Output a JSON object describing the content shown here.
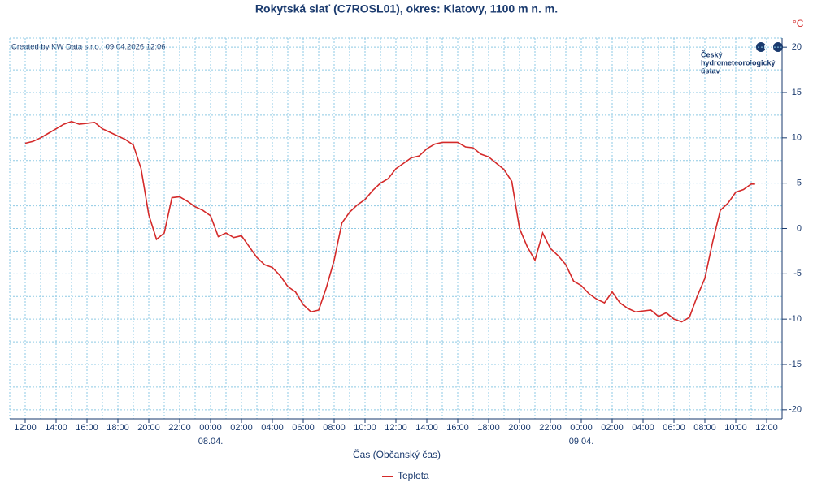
{
  "chart_data": {
    "type": "line",
    "title": "Rokytská slať (C7ROSL01), okres: Klatovy, 1100 m n. m.",
    "credit": "Created by KW Data s.r.o., 09.04.2026 12:06",
    "logo": [
      "Český",
      "hydrometeorologický",
      "ústav"
    ],
    "y_unit": "°C",
    "x_label": "Čas (Občanský čas)",
    "xlim": [
      -1,
      49
    ],
    "xticks": [
      {
        "value": 0,
        "label": "12:00"
      },
      {
        "value": 2,
        "label": "14:00"
      },
      {
        "value": 4,
        "label": "16:00"
      },
      {
        "value": 6,
        "label": "18:00"
      },
      {
        "value": 8,
        "label": "20:00"
      },
      {
        "value": 10,
        "label": "22:00"
      },
      {
        "value": 12,
        "label": "00:00"
      },
      {
        "value": 14,
        "label": "02:00"
      },
      {
        "value": 16,
        "label": "04:00"
      },
      {
        "value": 18,
        "label": "06:00"
      },
      {
        "value": 20,
        "label": "08:00"
      },
      {
        "value": 22,
        "label": "10:00"
      },
      {
        "value": 24,
        "label": "12:00"
      },
      {
        "value": 26,
        "label": "14:00"
      },
      {
        "value": 28,
        "label": "16:00"
      },
      {
        "value": 30,
        "label": "18:00"
      },
      {
        "value": 32,
        "label": "20:00"
      },
      {
        "value": 34,
        "label": "22:00"
      },
      {
        "value": 36,
        "label": "00:00"
      },
      {
        "value": 38,
        "label": "02:00"
      },
      {
        "value": 40,
        "label": "04:00"
      },
      {
        "value": 42,
        "label": "06:00"
      },
      {
        "value": 44,
        "label": "08:00"
      },
      {
        "value": 46,
        "label": "10:00"
      },
      {
        "value": 48,
        "label": "12:00"
      }
    ],
    "x_date_labels": [
      {
        "value": 12,
        "label": "08.04."
      },
      {
        "value": 36,
        "label": "09.04."
      }
    ],
    "ylim": [
      -21,
      21
    ],
    "yticks": [
      20,
      15,
      10,
      5,
      0,
      -5,
      -10,
      -15,
      -20
    ],
    "grid": true,
    "legend": "bottom",
    "x": [
      0,
      0.5,
      1,
      1.5,
      2,
      2.5,
      3,
      3.5,
      4,
      4.5,
      5,
      5.5,
      6,
      6.5,
      7,
      7.5,
      8,
      8.5,
      9,
      9.5,
      10,
      10.5,
      11,
      11.5,
      12,
      12.5,
      13,
      13.5,
      14,
      14.5,
      15,
      15.5,
      16,
      16.5,
      17,
      17.5,
      18,
      18.5,
      19,
      19.5,
      20,
      20.5,
      21,
      21.5,
      22,
      22.5,
      23,
      23.5,
      24,
      24.5,
      25,
      25.5,
      26,
      26.5,
      27,
      27.5,
      28,
      28.5,
      29,
      29.5,
      30,
      30.5,
      31,
      31.5,
      32,
      32.5,
      33,
      33.5,
      34,
      34.5,
      35,
      35.5,
      36,
      36.5,
      37,
      37.5,
      38,
      38.5,
      39,
      39.5,
      40,
      40.5,
      41,
      41.5,
      42,
      42.5,
      43,
      43.5,
      44,
      44.5,
      45,
      45.5,
      46,
      46.5,
      47,
      47.25
    ],
    "series": [
      {
        "name": "Teplota",
        "color": "#d42a2a",
        "values": [
          9.4,
          9.6,
          10.0,
          10.5,
          11.0,
          11.5,
          11.8,
          11.5,
          11.6,
          11.7,
          11.0,
          10.6,
          10.2,
          9.8,
          9.2,
          6.6,
          1.5,
          -1.2,
          -0.5,
          3.4,
          3.5,
          3.0,
          2.4,
          2.0,
          1.4,
          -0.9,
          -0.5,
          -1.0,
          -0.8,
          -2.0,
          -3.2,
          -4.0,
          -4.3,
          -5.2,
          -6.4,
          -7.0,
          -8.4,
          -9.2,
          -9.0,
          -6.5,
          -3.5,
          0.6,
          1.8,
          2.6,
          3.2,
          4.2,
          5.0,
          5.5,
          6.6,
          7.2,
          7.8,
          8.0,
          8.8,
          9.3,
          9.5,
          9.5,
          9.5,
          9.0,
          8.9,
          8.2,
          7.9,
          7.2,
          6.5,
          5.2,
          0.0,
          -2.0,
          -3.5,
          -0.5,
          -2.2,
          -3.0,
          -4.0,
          -5.8,
          -6.3,
          -7.2,
          -7.8,
          -8.2,
          -7.0,
          -8.2,
          -8.8,
          -9.2,
          -9.1,
          -9.0,
          -9.7,
          -9.3,
          -10.0,
          -10.3,
          -9.8,
          -7.5,
          -5.5,
          -1.5,
          2.0,
          2.8,
          4.0,
          4.3,
          4.9,
          4.9
        ]
      }
    ]
  }
}
